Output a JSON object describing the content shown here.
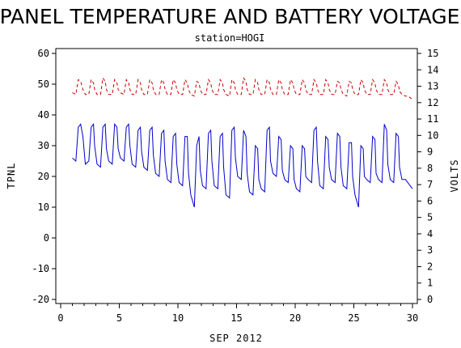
{
  "chart_data": {
    "type": "line",
    "title": "PANEL TEMPERATURE AND BATTERY VOLTAGE",
    "subtitle": "station=HOGI",
    "xlabel": "SEP 2012",
    "ylabel": "TPNL",
    "y2label": "VOLTS",
    "xlim": [
      0,
      30
    ],
    "ylim": [
      -20,
      60
    ],
    "y2lim": [
      0,
      15
    ],
    "x_ticks": [
      0,
      5,
      10,
      15,
      20,
      25,
      30
    ],
    "y_ticks": [
      -20,
      -10,
      0,
      10,
      20,
      30,
      40,
      50,
      60
    ],
    "y2_ticks": [
      0,
      1,
      2,
      3,
      4,
      5,
      6,
      7,
      8,
      9,
      10,
      11,
      12,
      13,
      14,
      15
    ],
    "grid": false,
    "series": [
      {
        "axis": "left",
        "color": "#0000cc",
        "style": "solid",
        "x": [
          1.0,
          1.3,
          1.5,
          1.7,
          1.9,
          2.1,
          2.4,
          2.6,
          2.8,
          2.9,
          3.1,
          3.4,
          3.6,
          3.8,
          3.9,
          4.1,
          4.4,
          4.6,
          4.8,
          4.9,
          5.1,
          5.4,
          5.6,
          5.8,
          5.9,
          6.1,
          6.4,
          6.6,
          6.8,
          6.9,
          7.1,
          7.4,
          7.6,
          7.8,
          7.9,
          8.1,
          8.4,
          8.6,
          8.8,
          8.9,
          9.1,
          9.4,
          9.6,
          9.8,
          9.9,
          10.1,
          10.4,
          10.6,
          10.8,
          10.9,
          11.1,
          11.4,
          11.6,
          11.8,
          11.9,
          12.1,
          12.4,
          12.6,
          12.8,
          12.9,
          13.1,
          13.4,
          13.6,
          13.8,
          13.9,
          14.1,
          14.4,
          14.6,
          14.8,
          14.9,
          15.1,
          15.4,
          15.6,
          15.8,
          15.9,
          16.1,
          16.4,
          16.6,
          16.8,
          16.9,
          17.1,
          17.4,
          17.6,
          17.8,
          17.9,
          18.1,
          18.4,
          18.6,
          18.8,
          18.9,
          19.1,
          19.4,
          19.6,
          19.8,
          19.9,
          20.1,
          20.4,
          20.6,
          20.8,
          20.9,
          21.1,
          21.4,
          21.6,
          21.8,
          21.9,
          22.1,
          22.4,
          22.6,
          22.8,
          22.9,
          23.1,
          23.4,
          23.6,
          23.8,
          23.9,
          24.1,
          24.4,
          24.6,
          24.8,
          24.9,
          25.1,
          25.4,
          25.6,
          25.8,
          25.9,
          26.1,
          26.4,
          26.6,
          26.8,
          26.9,
          27.1,
          27.4,
          27.6,
          27.8,
          27.9,
          28.1,
          28.4,
          28.6,
          28.8,
          28.9,
          29.1,
          29.4,
          29.6,
          29.8,
          30.0
        ],
        "y": [
          26,
          25,
          36,
          37,
          33,
          24,
          25,
          36,
          37,
          30,
          24,
          23,
          36,
          37,
          29,
          25,
          24,
          37,
          36,
          29,
          26,
          25,
          36,
          37,
          30,
          24,
          23,
          35,
          36,
          28,
          23,
          22,
          35,
          36,
          27,
          21,
          20,
          34,
          35,
          25,
          19,
          18,
          33,
          34,
          24,
          18,
          17,
          33,
          33,
          21,
          14,
          10,
          30,
          33,
          22,
          17,
          16,
          34,
          35,
          25,
          17,
          16,
          33,
          34,
          23,
          14,
          13,
          35,
          36,
          26,
          20,
          19,
          35,
          33,
          21,
          15,
          14,
          30,
          29,
          19,
          16,
          15,
          35,
          36,
          25,
          21,
          20,
          33,
          32,
          22,
          19,
          18,
          30,
          29,
          19,
          16,
          15,
          30,
          29,
          20,
          19,
          18,
          35,
          36,
          25,
          17,
          16,
          33,
          32,
          23,
          19,
          18,
          34,
          33,
          23,
          17,
          16,
          31,
          31,
          20,
          14,
          10,
          30,
          29,
          20,
          19,
          18,
          33,
          32,
          21,
          19,
          18,
          37,
          35,
          24,
          19,
          18,
          34,
          33,
          23,
          19,
          19,
          18,
          17,
          16
        ],
        "name": ""
      },
      {
        "axis": "right",
        "color": "#cc0000",
        "style": "dashed",
        "x": [
          1.0,
          1.3,
          1.5,
          1.7,
          1.9,
          2.1,
          2.4,
          2.6,
          2.8,
          2.9,
          3.1,
          3.4,
          3.6,
          3.8,
          3.9,
          4.1,
          4.4,
          4.6,
          4.8,
          4.9,
          5.1,
          5.4,
          5.6,
          5.8,
          5.9,
          6.1,
          6.4,
          6.6,
          6.8,
          6.9,
          7.1,
          7.4,
          7.6,
          7.8,
          7.9,
          8.1,
          8.4,
          8.6,
          8.8,
          8.9,
          9.1,
          9.4,
          9.6,
          9.8,
          9.9,
          10.1,
          10.4,
          10.6,
          10.8,
          10.9,
          11.1,
          11.4,
          11.6,
          11.8,
          11.9,
          12.1,
          12.4,
          12.6,
          12.8,
          12.9,
          13.1,
          13.4,
          13.6,
          13.8,
          13.9,
          14.1,
          14.4,
          14.6,
          14.8,
          14.9,
          15.1,
          15.4,
          15.6,
          15.8,
          15.9,
          16.1,
          16.4,
          16.6,
          16.8,
          16.9,
          17.1,
          17.4,
          17.6,
          17.8,
          17.9,
          18.1,
          18.4,
          18.6,
          18.8,
          18.9,
          19.1,
          19.4,
          19.6,
          19.8,
          19.9,
          20.1,
          20.4,
          20.6,
          20.8,
          20.9,
          21.1,
          21.4,
          21.6,
          21.8,
          21.9,
          22.1,
          22.4,
          22.6,
          22.8,
          22.9,
          23.1,
          23.4,
          23.6,
          23.8,
          23.9,
          24.1,
          24.4,
          24.6,
          24.8,
          24.9,
          25.1,
          25.4,
          25.6,
          25.8,
          25.9,
          26.1,
          26.4,
          26.6,
          26.8,
          26.9,
          27.1,
          27.4,
          27.6,
          27.8,
          27.9,
          28.1,
          28.4,
          28.6,
          28.8,
          28.9,
          29.1,
          29.4,
          29.6,
          29.8,
          30.0
        ],
        "y": [
          12.6,
          12.5,
          13.4,
          13.3,
          12.8,
          12.5,
          12.5,
          13.4,
          13.2,
          12.8,
          12.5,
          12.5,
          13.5,
          13.3,
          12.8,
          12.5,
          12.5,
          13.4,
          13.2,
          12.8,
          12.6,
          12.5,
          13.4,
          13.2,
          12.8,
          12.5,
          12.5,
          13.4,
          13.2,
          12.8,
          12.5,
          12.5,
          13.4,
          13.2,
          12.8,
          12.5,
          12.5,
          13.4,
          13.2,
          12.8,
          12.5,
          12.5,
          13.4,
          13.2,
          12.8,
          12.5,
          12.5,
          13.4,
          13.2,
          12.8,
          12.5,
          12.4,
          13.3,
          13.2,
          12.8,
          12.5,
          12.5,
          13.4,
          13.2,
          12.8,
          12.5,
          12.5,
          13.4,
          13.2,
          12.8,
          12.5,
          12.4,
          13.4,
          13.2,
          12.8,
          12.5,
          12.5,
          13.5,
          13.3,
          12.8,
          12.5,
          12.5,
          13.4,
          13.2,
          12.8,
          12.5,
          12.5,
          13.4,
          13.2,
          12.8,
          12.5,
          12.5,
          13.4,
          13.2,
          12.8,
          12.5,
          12.5,
          13.4,
          13.2,
          12.8,
          12.5,
          12.5,
          13.4,
          13.2,
          12.8,
          12.5,
          12.5,
          13.4,
          13.2,
          12.8,
          12.5,
          12.5,
          13.4,
          13.2,
          12.8,
          12.5,
          12.5,
          13.3,
          13.2,
          12.8,
          12.5,
          12.4,
          13.3,
          13.2,
          12.8,
          12.5,
          12.5,
          13.4,
          13.2,
          12.8,
          12.5,
          12.5,
          13.4,
          13.2,
          12.8,
          12.5,
          12.5,
          13.4,
          13.2,
          12.8,
          12.5,
          12.5,
          13.3,
          13.1,
          12.7,
          12.5,
          12.4,
          12.4,
          12.3,
          12.2
        ],
        "name": ""
      }
    ]
  }
}
